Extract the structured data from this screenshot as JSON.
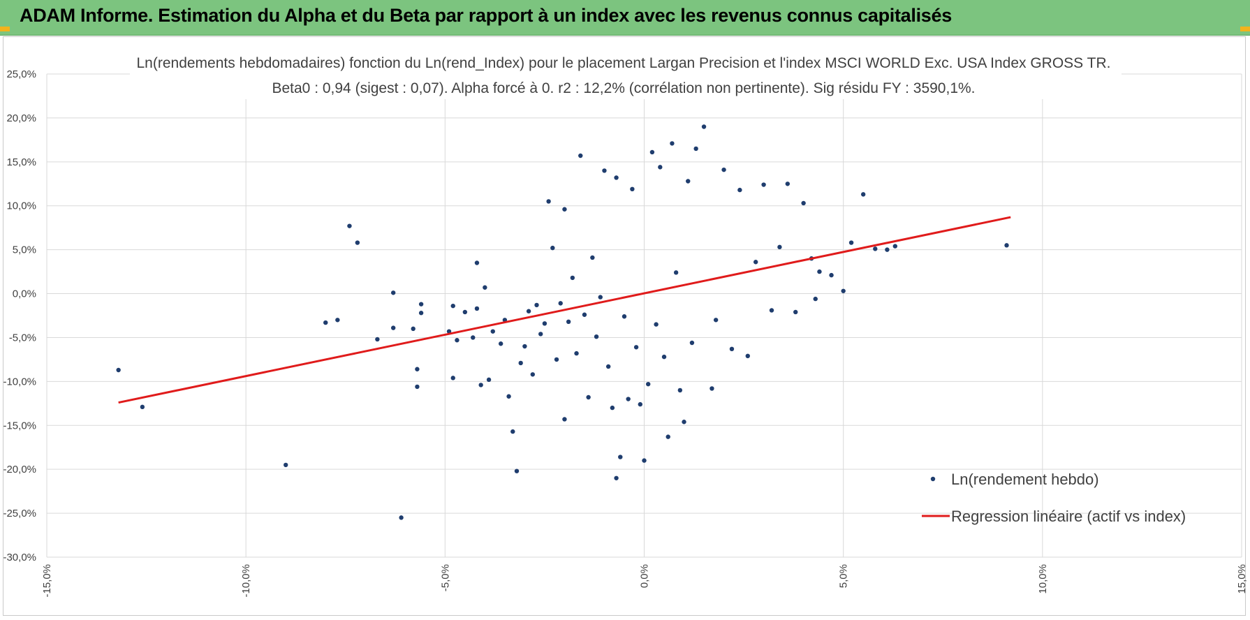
{
  "header": {
    "title": "ADAM Informe. Estimation du Alpha et du Beta par rapport à un index avec les revenus connus capitalisés",
    "background": "#7cc47f",
    "accent": "#f2b31b"
  },
  "chart_data": {
    "type": "scatter",
    "title": "Ln(rendements hebdomadaires) fonction du Ln(rend_Index) pour le placement Largan Precision  et l'index MSCI WORLD Exc. USA Index GROSS TR.",
    "subtitle": "Beta0 : 0,94 (sigest : 0,07).  Alpha forcé à 0. r2 : 12,2% (corrélation non pertinente). Sig résidu FY : 3590,1%.",
    "xlim": [
      -15,
      15
    ],
    "ylim": [
      -30,
      25
    ],
    "x_ticks": [
      "-15,0%",
      "-10,0%",
      "-5,0%",
      "0,0%",
      "5,0%",
      "10,0%",
      "15,0%"
    ],
    "y_ticks": [
      "25,0%",
      "20,0%",
      "15,0%",
      "10,0%",
      "5,0%",
      "0,0%",
      "-5,0%",
      "-10,0%",
      "-15,0%",
      "-20,0%",
      "-25,0%",
      "-30,0%"
    ],
    "grid": true,
    "legend_position": "bottom-right",
    "series": [
      {
        "name": "Ln(rendement hebdo)",
        "kind": "scatter",
        "color": "#1f3d6e",
        "points": [
          [
            -13.2,
            -8.7
          ],
          [
            -12.6,
            -12.9
          ],
          [
            -9.0,
            -19.5
          ],
          [
            -8.0,
            -3.3
          ],
          [
            -7.7,
            -3.0
          ],
          [
            -7.4,
            7.7
          ],
          [
            -7.2,
            5.8
          ],
          [
            -6.7,
            -5.2
          ],
          [
            -6.3,
            0.1
          ],
          [
            -6.3,
            -3.9
          ],
          [
            -6.1,
            -25.5
          ],
          [
            -5.8,
            -4.0
          ],
          [
            -5.7,
            -8.6
          ],
          [
            -5.7,
            -10.6
          ],
          [
            -5.6,
            -1.2
          ],
          [
            -5.6,
            -2.2
          ],
          [
            -4.9,
            -4.3
          ],
          [
            -4.8,
            -9.6
          ],
          [
            -4.8,
            -1.4
          ],
          [
            -4.7,
            -5.3
          ],
          [
            -4.5,
            -2.1
          ],
          [
            -4.3,
            -5.0
          ],
          [
            -4.2,
            -1.7
          ],
          [
            -4.2,
            3.5
          ],
          [
            -4.1,
            -10.4
          ],
          [
            -4.0,
            0.7
          ],
          [
            -3.9,
            -9.8
          ],
          [
            -3.8,
            -4.3
          ],
          [
            -3.6,
            -5.7
          ],
          [
            -3.5,
            -3.0
          ],
          [
            -3.4,
            -11.7
          ],
          [
            -3.3,
            -15.7
          ],
          [
            -3.2,
            -20.2
          ],
          [
            -3.1,
            -7.9
          ],
          [
            -3.0,
            -6.0
          ],
          [
            -2.9,
            -2.0
          ],
          [
            -2.8,
            -9.2
          ],
          [
            -2.7,
            -1.3
          ],
          [
            -2.6,
            -4.6
          ],
          [
            -2.5,
            -3.4
          ],
          [
            -2.4,
            10.5
          ],
          [
            -2.3,
            5.2
          ],
          [
            -2.2,
            -7.5
          ],
          [
            -2.1,
            -1.1
          ],
          [
            -2.0,
            9.6
          ],
          [
            -2.0,
            -14.3
          ],
          [
            -1.9,
            -3.2
          ],
          [
            -1.8,
            1.8
          ],
          [
            -1.7,
            -6.8
          ],
          [
            -1.6,
            15.7
          ],
          [
            -1.5,
            -2.4
          ],
          [
            -1.4,
            -11.8
          ],
          [
            -1.3,
            4.1
          ],
          [
            -1.2,
            -4.9
          ],
          [
            -1.1,
            -0.4
          ],
          [
            -1.0,
            14.0
          ],
          [
            -0.9,
            -8.3
          ],
          [
            -0.8,
            -13.0
          ],
          [
            -0.7,
            13.2
          ],
          [
            -0.7,
            -21.0
          ],
          [
            -0.6,
            -18.6
          ],
          [
            -0.5,
            -2.6
          ],
          [
            -0.4,
            -12.0
          ],
          [
            -0.3,
            11.9
          ],
          [
            -0.2,
            -6.1
          ],
          [
            -0.1,
            -12.6
          ],
          [
            0.0,
            -19.0
          ],
          [
            0.1,
            -10.3
          ],
          [
            0.2,
            16.1
          ],
          [
            0.3,
            -3.5
          ],
          [
            0.4,
            14.4
          ],
          [
            0.5,
            -7.2
          ],
          [
            0.6,
            -16.3
          ],
          [
            0.7,
            17.1
          ],
          [
            0.8,
            2.4
          ],
          [
            0.9,
            -11.0
          ],
          [
            1.0,
            -14.6
          ],
          [
            1.1,
            12.8
          ],
          [
            1.2,
            -5.6
          ],
          [
            1.3,
            16.5
          ],
          [
            1.5,
            19.0
          ],
          [
            1.7,
            -10.8
          ],
          [
            1.8,
            -3.0
          ],
          [
            2.0,
            14.1
          ],
          [
            2.2,
            -6.3
          ],
          [
            2.4,
            11.8
          ],
          [
            2.6,
            -7.1
          ],
          [
            2.8,
            3.6
          ],
          [
            3.0,
            12.4
          ],
          [
            3.2,
            -1.9
          ],
          [
            3.4,
            5.3
          ],
          [
            3.6,
            12.5
          ],
          [
            3.8,
            -2.1
          ],
          [
            4.0,
            10.3
          ],
          [
            4.2,
            4.0
          ],
          [
            4.3,
            -0.6
          ],
          [
            4.4,
            2.5
          ],
          [
            4.7,
            2.1
          ],
          [
            5.0,
            0.3
          ],
          [
            5.2,
            5.8
          ],
          [
            5.5,
            11.3
          ],
          [
            5.8,
            5.1
          ],
          [
            6.1,
            5.0
          ],
          [
            6.3,
            5.4
          ],
          [
            9.1,
            5.5
          ]
        ]
      },
      {
        "name": "Regression linéaire (actif vs index)",
        "kind": "line",
        "color": "#e01b1b",
        "x": [
          -13.2,
          9.2
        ],
        "y": [
          -12.4,
          8.7
        ]
      }
    ]
  }
}
